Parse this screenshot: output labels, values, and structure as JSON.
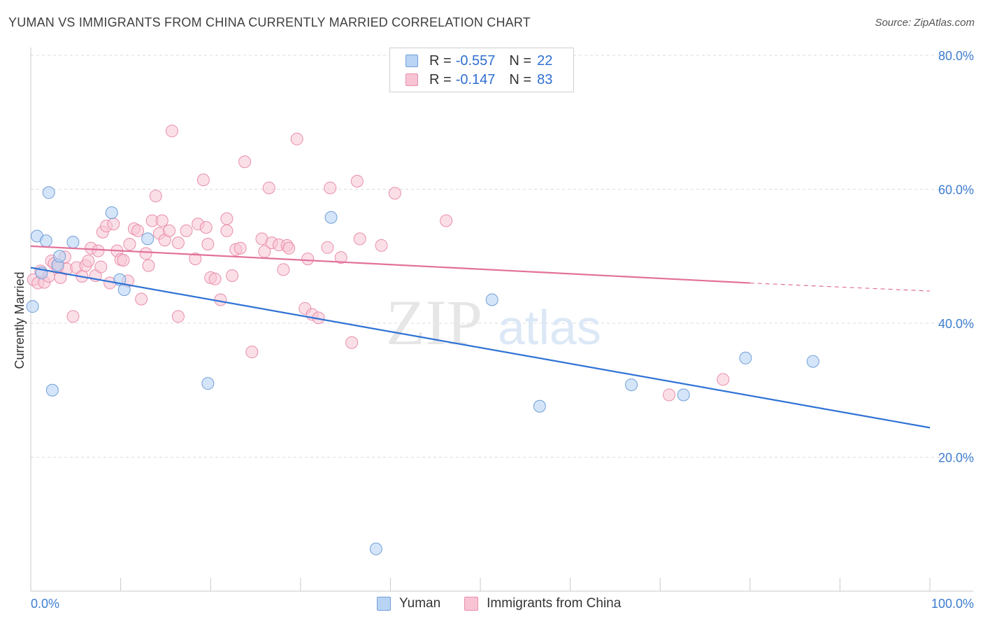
{
  "title": "YUMAN VS IMMIGRANTS FROM CHINA CURRENTLY MARRIED CORRELATION CHART",
  "source": "Source: ZipAtlas.com",
  "watermark": {
    "zip": "ZIP",
    "atlas": "atlas"
  },
  "legend": {
    "series1": {
      "r_label": "R =",
      "r_value": "-0.557",
      "n_label": "N =",
      "n_value": "22"
    },
    "series2": {
      "r_label": "R =",
      "r_value": "-0.147",
      "n_label": "N =",
      "n_value": "83"
    }
  },
  "colors": {
    "yuman_fill": "#b9d3f5",
    "yuman_stroke": "#6f9fd8",
    "yuman_line": "#2f72d6",
    "china_fill": "#f8c4d4",
    "china_stroke": "#e98eaa",
    "china_line": "#e2709a",
    "grid": "#dcdcdc",
    "axis_text": "#3e7dd0"
  },
  "chart_data": {
    "type": "scatter",
    "title": "YUMAN VS IMMIGRANTS FROM CHINA CURRENTLY MARRIED CORRELATION CHART",
    "xlabel": "",
    "ylabel": "Currently Married",
    "xlim": [
      0,
      100
    ],
    "ylim": [
      0,
      80
    ],
    "x_tick_labels": [
      "0.0%",
      "100.0%"
    ],
    "y_ticks": [
      20,
      40,
      60,
      80
    ],
    "y_tick_labels": [
      "20.0%",
      "40.0%",
      "60.0%",
      "80.0%"
    ],
    "legend_position": "bottom-center",
    "series": [
      {
        "name": "Yuman",
        "trend": {
          "x0": 0,
          "y0": 48.3,
          "x1": 100,
          "y1": 24.4
        },
        "points": [
          [
            0.2,
            42.5
          ],
          [
            0.7,
            53.0
          ],
          [
            1.2,
            47.5
          ],
          [
            1.7,
            52.3
          ],
          [
            2.0,
            59.5
          ],
          [
            2.4,
            30.0
          ],
          [
            3.0,
            48.7
          ],
          [
            3.2,
            50.0
          ],
          [
            4.7,
            52.1
          ],
          [
            9.0,
            56.5
          ],
          [
            9.9,
            46.5
          ],
          [
            10.4,
            45.0
          ],
          [
            13.0,
            52.6
          ],
          [
            19.7,
            31.0
          ],
          [
            33.4,
            55.8
          ],
          [
            38.4,
            6.3
          ],
          [
            51.3,
            43.5
          ],
          [
            56.6,
            27.6
          ],
          [
            66.8,
            30.8
          ],
          [
            72.6,
            29.3
          ],
          [
            79.5,
            34.8
          ],
          [
            87.0,
            34.3
          ]
        ]
      },
      {
        "name": "Immigrants from China",
        "trend": {
          "x0": 0,
          "y0": 51.5,
          "x1": 80,
          "y1": 46.0
        },
        "trend_dashed": {
          "x0": 80,
          "y0": 46.0,
          "x1": 100,
          "y1": 44.8
        },
        "points": [
          [
            0.3,
            46.5
          ],
          [
            0.8,
            46.0
          ],
          [
            1.1,
            47.8
          ],
          [
            1.5,
            46.1
          ],
          [
            2.0,
            47.0
          ],
          [
            2.3,
            49.3
          ],
          [
            2.6,
            48.9
          ],
          [
            3.0,
            48.3
          ],
          [
            3.3,
            46.8
          ],
          [
            3.8,
            49.9
          ],
          [
            4.0,
            48.1
          ],
          [
            4.7,
            41.0
          ],
          [
            5.1,
            48.3
          ],
          [
            5.7,
            47.0
          ],
          [
            6.1,
            48.6
          ],
          [
            6.4,
            49.3
          ],
          [
            6.7,
            51.2
          ],
          [
            7.2,
            47.1
          ],
          [
            7.5,
            50.8
          ],
          [
            7.8,
            48.4
          ],
          [
            8.0,
            53.6
          ],
          [
            8.4,
            54.5
          ],
          [
            8.8,
            46.0
          ],
          [
            9.2,
            54.8
          ],
          [
            9.6,
            50.8
          ],
          [
            10.0,
            49.5
          ],
          [
            10.3,
            49.4
          ],
          [
            10.8,
            46.3
          ],
          [
            11.0,
            51.8
          ],
          [
            11.5,
            54.1
          ],
          [
            11.9,
            53.8
          ],
          [
            12.3,
            43.6
          ],
          [
            12.8,
            50.4
          ],
          [
            13.1,
            48.6
          ],
          [
            13.5,
            55.3
          ],
          [
            13.9,
            59.0
          ],
          [
            14.3,
            53.4
          ],
          [
            14.6,
            55.3
          ],
          [
            14.9,
            52.4
          ],
          [
            15.4,
            53.8
          ],
          [
            15.7,
            68.7
          ],
          [
            16.4,
            41.0
          ],
          [
            16.4,
            52.0
          ],
          [
            17.3,
            53.8
          ],
          [
            18.3,
            49.6
          ],
          [
            18.6,
            54.8
          ],
          [
            19.2,
            61.4
          ],
          [
            19.5,
            54.3
          ],
          [
            19.7,
            51.8
          ],
          [
            20.0,
            46.8
          ],
          [
            20.5,
            46.6
          ],
          [
            21.1,
            43.5
          ],
          [
            21.8,
            55.6
          ],
          [
            21.8,
            53.8
          ],
          [
            22.4,
            47.1
          ],
          [
            22.8,
            51.0
          ],
          [
            23.3,
            51.2
          ],
          [
            23.8,
            64.1
          ],
          [
            24.6,
            35.7
          ],
          [
            25.7,
            52.6
          ],
          [
            26.0,
            50.7
          ],
          [
            26.5,
            60.2
          ],
          [
            26.8,
            52.0
          ],
          [
            27.6,
            51.7
          ],
          [
            28.1,
            48.0
          ],
          [
            28.5,
            51.6
          ],
          [
            28.7,
            51.2
          ],
          [
            29.6,
            67.5
          ],
          [
            30.5,
            42.2
          ],
          [
            31.3,
            41.3
          ],
          [
            32.0,
            40.8
          ],
          [
            30.8,
            49.6
          ],
          [
            33.0,
            51.3
          ],
          [
            33.3,
            60.2
          ],
          [
            34.5,
            49.8
          ],
          [
            35.7,
            37.1
          ],
          [
            36.3,
            61.2
          ],
          [
            36.6,
            52.6
          ],
          [
            39.0,
            51.6
          ],
          [
            40.5,
            59.4
          ],
          [
            46.2,
            55.3
          ],
          [
            71.0,
            29.3
          ],
          [
            77.0,
            31.6
          ]
        ]
      }
    ]
  },
  "bottom_legend": {
    "yuman": "Yuman",
    "china": "Immigrants from China"
  }
}
